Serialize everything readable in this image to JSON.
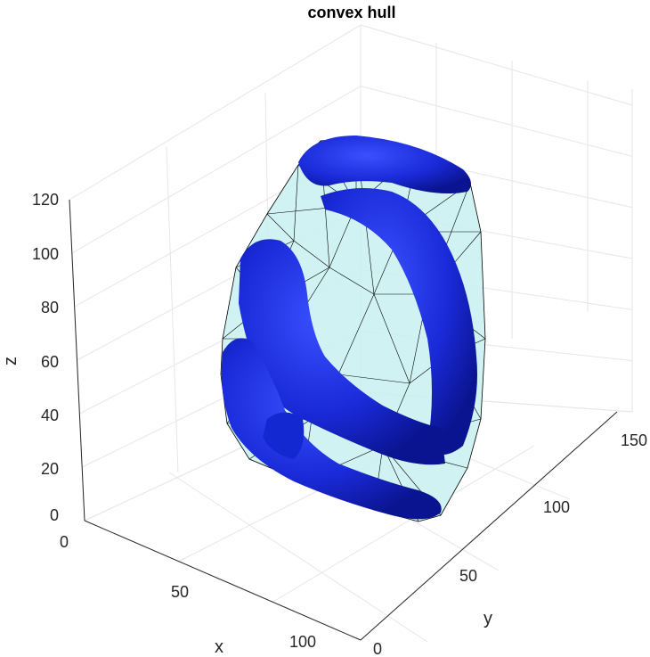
{
  "chart_data": {
    "type": "3d-surface",
    "title": "convex hull",
    "xlabel": "x",
    "ylabel": "y",
    "zlabel": "z",
    "x_ticks": [
      "0",
      "50",
      "100"
    ],
    "y_ticks": [
      "0",
      "50",
      "100",
      "150"
    ],
    "z_ticks": [
      "0",
      "20",
      "40",
      "60",
      "80",
      "100",
      "120"
    ],
    "xlim": [
      0,
      110
    ],
    "ylim": [
      0,
      160
    ],
    "zlim": [
      0,
      120
    ],
    "grid": true,
    "series": [
      {
        "kind": "convex-hull-mesh",
        "color": "#c8f0f0",
        "edge_color": "#000000"
      },
      {
        "kind": "blue-surface",
        "color": "#1428d2"
      }
    ]
  }
}
